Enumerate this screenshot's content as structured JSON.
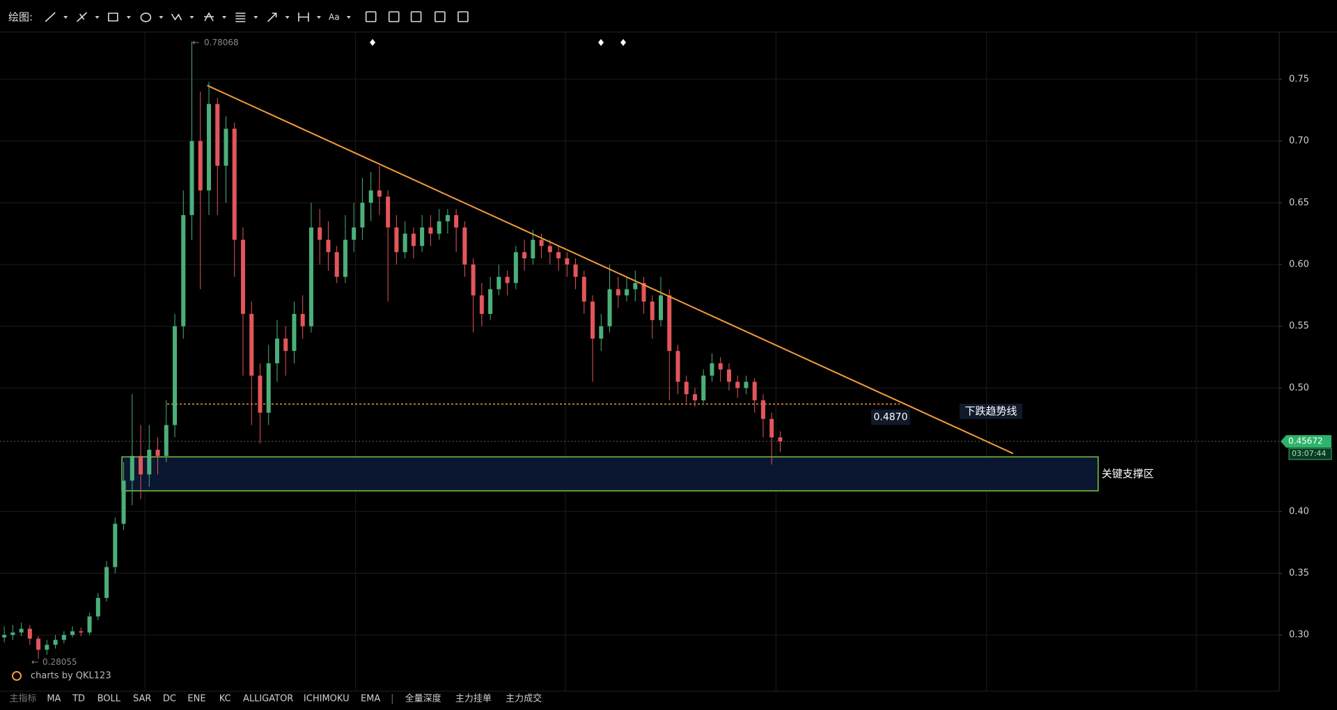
{
  "toolbar": {
    "label": "绘图:",
    "font_button": "Aa"
  },
  "indicator_bar": [
    "主指标",
    "MA",
    "TD",
    "BOLL",
    "SAR",
    "DC",
    "ENE",
    "KC",
    "ALLIGATOR",
    "ICHIMOKU",
    "EMA",
    "全量深度",
    "主力挂单",
    "主力成交"
  ],
  "watermark": "charts by QKL123",
  "chart_data": {
    "type": "candlestick",
    "categories": [
      null,
      null,
      null,
      null,
      null,
      null,
      null,
      null,
      null,
      null,
      null,
      null,
      null,
      null,
      null,
      null,
      null,
      null,
      null,
      null,
      null,
      null,
      null,
      null,
      null,
      null,
      null,
      null,
      null,
      null,
      null,
      null,
      null,
      null,
      null,
      null,
      null,
      null,
      null,
      null,
      null,
      null,
      null,
      null,
      null,
      null,
      null,
      null,
      null,
      null,
      null,
      null,
      null,
      null,
      null,
      null,
      null,
      null,
      null,
      null,
      null,
      null,
      null,
      null,
      null,
      null,
      null,
      null,
      null,
      null,
      null,
      null,
      null,
      null,
      null,
      null,
      null,
      null,
      null,
      null,
      null,
      null,
      null,
      null,
      null,
      null,
      null,
      null,
      null,
      null,
      null,
      null
    ],
    "open": [
      0.298,
      0.3,
      0.302,
      0.305,
      0.297,
      0.288,
      0.292,
      0.296,
      0.3,
      0.303,
      0.302,
      0.315,
      0.33,
      0.355,
      0.39,
      0.425,
      0.445,
      0.43,
      0.45,
      0.445,
      0.47,
      0.55,
      0.64,
      0.7,
      0.66,
      0.73,
      0.68,
      0.71,
      0.62,
      0.56,
      0.51,
      0.48,
      0.52,
      0.54,
      0.53,
      0.56,
      0.55,
      0.63,
      0.62,
      0.61,
      0.59,
      0.62,
      0.63,
      0.65,
      0.66,
      0.655,
      0.63,
      0.61,
      0.625,
      0.615,
      0.63,
      0.625,
      0.635,
      0.64,
      0.63,
      0.6,
      0.575,
      0.56,
      0.58,
      0.59,
      0.585,
      0.61,
      0.605,
      0.62,
      0.615,
      0.61,
      0.605,
      0.6,
      0.59,
      0.57,
      0.54,
      0.55,
      0.58,
      0.575,
      0.58,
      0.585,
      0.57,
      0.555,
      0.575,
      0.53,
      0.505,
      0.495,
      0.49,
      0.51,
      0.52,
      0.515,
      0.505,
      0.5,
      0.505,
      0.49,
      0.475,
      0.46
    ],
    "high": [
      0.307,
      0.308,
      0.31,
      0.308,
      0.299,
      0.296,
      0.3,
      0.303,
      0.307,
      0.306,
      0.318,
      0.334,
      0.36,
      0.395,
      0.44,
      0.495,
      0.47,
      0.47,
      0.46,
      0.49,
      0.56,
      0.66,
      0.78068,
      0.74,
      0.748,
      0.735,
      0.72,
      0.715,
      0.63,
      0.57,
      0.52,
      0.535,
      0.555,
      0.55,
      0.57,
      0.575,
      0.65,
      0.645,
      0.635,
      0.615,
      0.64,
      0.65,
      0.67,
      0.675,
      0.68,
      0.66,
      0.64,
      0.635,
      0.63,
      0.64,
      0.64,
      0.645,
      0.645,
      0.645,
      0.635,
      0.605,
      0.585,
      0.59,
      0.6,
      0.595,
      0.615,
      0.62,
      0.628,
      0.625,
      0.62,
      0.615,
      0.61,
      0.605,
      0.595,
      0.575,
      0.56,
      0.6,
      0.59,
      0.59,
      0.595,
      0.59,
      0.575,
      0.59,
      0.58,
      0.535,
      0.51,
      0.5,
      0.515,
      0.528,
      0.525,
      0.52,
      0.51,
      0.51,
      0.508,
      0.495,
      0.48,
      0.465
    ],
    "low": [
      0.294,
      0.296,
      0.299,
      0.292,
      0.28055,
      0.284,
      0.289,
      0.293,
      0.298,
      0.299,
      0.3,
      0.312,
      0.327,
      0.35,
      0.385,
      0.405,
      0.41,
      0.42,
      0.43,
      0.44,
      0.46,
      0.54,
      0.62,
      0.58,
      0.64,
      0.64,
      0.65,
      0.59,
      0.51,
      0.47,
      0.455,
      0.47,
      0.505,
      0.51,
      0.52,
      0.54,
      0.545,
      0.6,
      0.595,
      0.585,
      0.585,
      0.61,
      0.62,
      0.635,
      0.64,
      0.57,
      0.6,
      0.605,
      0.605,
      0.61,
      0.615,
      0.62,
      0.625,
      0.61,
      0.59,
      0.545,
      0.55,
      0.555,
      0.575,
      0.575,
      0.58,
      0.595,
      0.6,
      0.605,
      0.6,
      0.595,
      0.59,
      0.58,
      0.56,
      0.505,
      0.53,
      0.545,
      0.565,
      0.57,
      0.57,
      0.56,
      0.54,
      0.55,
      0.49,
      0.495,
      0.488,
      0.485,
      0.488,
      0.505,
      0.505,
      0.498,
      0.492,
      0.495,
      0.48,
      0.46,
      0.438,
      0.448
    ],
    "close": [
      0.3,
      0.302,
      0.305,
      0.297,
      0.288,
      0.292,
      0.296,
      0.3,
      0.303,
      0.302,
      0.315,
      0.33,
      0.355,
      0.39,
      0.425,
      0.445,
      0.43,
      0.45,
      0.445,
      0.47,
      0.55,
      0.64,
      0.7,
      0.66,
      0.73,
      0.68,
      0.71,
      0.62,
      0.56,
      0.51,
      0.48,
      0.52,
      0.54,
      0.53,
      0.56,
      0.55,
      0.63,
      0.62,
      0.61,
      0.59,
      0.62,
      0.63,
      0.65,
      0.66,
      0.655,
      0.63,
      0.61,
      0.625,
      0.615,
      0.63,
      0.625,
      0.635,
      0.64,
      0.63,
      0.6,
      0.575,
      0.56,
      0.58,
      0.59,
      0.585,
      0.61,
      0.605,
      0.62,
      0.615,
      0.61,
      0.605,
      0.6,
      0.59,
      0.57,
      0.54,
      0.55,
      0.58,
      0.575,
      0.58,
      0.585,
      0.57,
      0.555,
      0.575,
      0.53,
      0.505,
      0.495,
      0.49,
      0.51,
      0.52,
      0.515,
      0.505,
      0.5,
      0.505,
      0.49,
      0.475,
      0.46,
      0.4567
    ],
    "up_color": "#4caf7a",
    "down_color": "#e2565b",
    "ylim": [
      0.255,
      0.788
    ],
    "yticks": [
      0.75,
      {
        "value": 0.7,
        "label": "0.70"
      },
      0.65,
      {
        "value": 0.6,
        "label": "0.60"
      },
      0.55,
      {
        "value": 0.5,
        "label": "0.50"
      },
      {
        "value": 0.4,
        "label": "0.40"
      },
      0.35,
      {
        "value": 0.3,
        "label": "0.30"
      }
    ],
    "grid": true,
    "max_marker": 0.78068,
    "min_marker": 0.28055,
    "last_price": 0.45672,
    "countdown": "03:07:44",
    "level_line": {
      "value": 0.487,
      "label": "0.4870"
    },
    "trendline": {
      "label": "下跌趋势线",
      "start": 0.745,
      "end": 0.447,
      "color": "#f39c3c"
    },
    "support_zone": {
      "label": "关键支撑区",
      "top": 0.4442,
      "bottom": 0.4167
    }
  }
}
